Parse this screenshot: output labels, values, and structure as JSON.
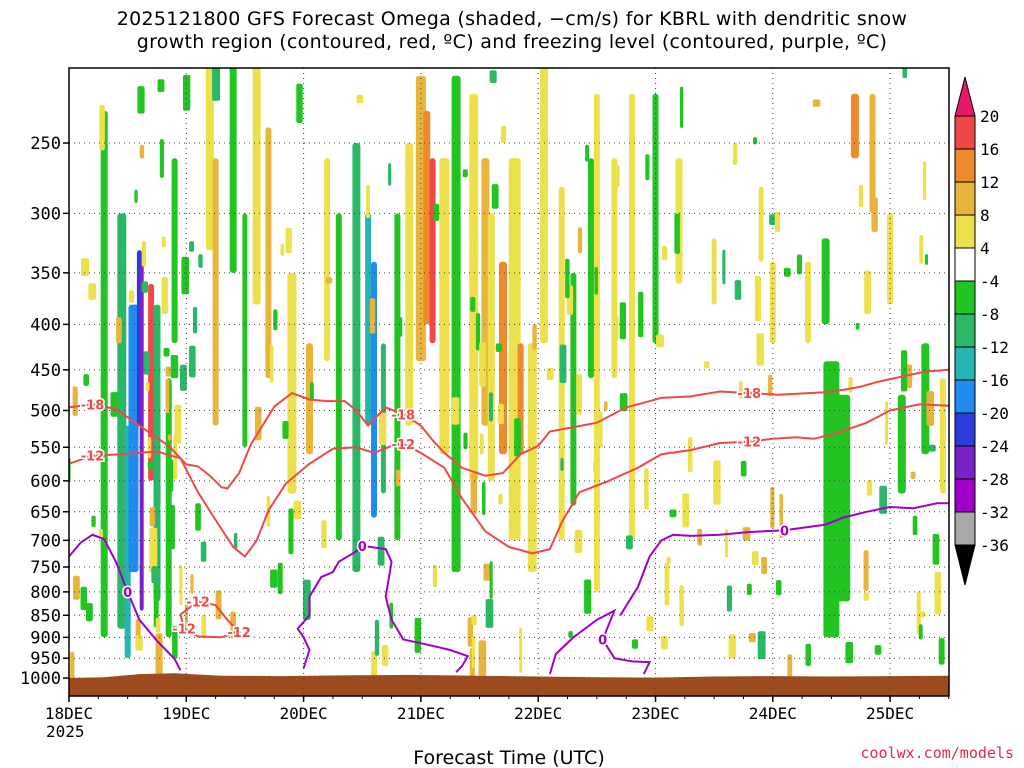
{
  "title_line1": "2025121800 GFS Forecast Omega (shaded, −cm/s) for KBRL with dendritic snow",
  "title_line2": "growth region (contoured, red, ºC) and freezing level (contoured, purple, ºC)",
  "xlabel": "Forecast Time (UTC)",
  "credit": "coolwx.com/models",
  "chart_data": {
    "type": "heatmap",
    "x_ticks": [
      "18DEC",
      "19DEC",
      "20DEC",
      "21DEC",
      "22DEC",
      "23DEC",
      "24DEC",
      "25DEC"
    ],
    "x_year": "2025",
    "x_range_days": [
      0,
      7.5
    ],
    "y_ticks": [
      250,
      300,
      350,
      400,
      450,
      500,
      550,
      600,
      650,
      700,
      750,
      800,
      850,
      900,
      950,
      1000
    ],
    "y_scale": "log-pressure",
    "y_range_hpa": [
      200,
      1050
    ],
    "grid": "dotted",
    "colorbar": {
      "labels": [
        "20",
        "16",
        "12",
        "8",
        "4",
        "-4",
        "-8",
        "-12",
        "-16",
        "-20",
        "-24",
        "-28",
        "-32",
        "-36"
      ],
      "colors": [
        "#e8176a",
        "#f04848",
        "#ec8a2c",
        "#e8b43c",
        "#ece04c",
        "#ffffff",
        "#22c422",
        "#2ab866",
        "#26b4b4",
        "#1e8cf0",
        "#2c3cdc",
        "#7a22c8",
        "#a000c8",
        "#a8a8a8",
        "#000000"
      ]
    },
    "dendritic_contours": [
      {
        "label": "-18",
        "color": "#f04848",
        "points": [
          [
            0,
            496
          ],
          [
            0.2,
            492
          ],
          [
            0.4,
            498
          ],
          [
            0.6,
            520
          ],
          [
            0.85,
            548
          ],
          [
            1.0,
            575
          ],
          [
            1.1,
            578
          ],
          [
            1.2,
            592
          ],
          [
            1.3,
            610
          ],
          [
            1.35,
            612
          ],
          [
            1.4,
            600
          ],
          [
            1.45,
            588
          ],
          [
            1.55,
            546
          ],
          [
            1.75,
            495
          ],
          [
            1.9,
            478
          ],
          [
            2.05,
            486
          ],
          [
            2.2,
            488
          ],
          [
            2.35,
            488
          ],
          [
            2.45,
            500
          ],
          [
            2.55,
            520
          ],
          [
            2.7,
            496
          ],
          [
            2.85,
            505
          ],
          [
            3.0,
            520
          ],
          [
            3.1,
            540
          ],
          [
            3.2,
            558
          ],
          [
            3.35,
            580
          ],
          [
            3.55,
            592
          ],
          [
            3.7,
            588
          ],
          [
            3.85,
            560
          ],
          [
            4.0,
            548
          ],
          [
            4.1,
            528
          ],
          [
            4.3,
            522
          ],
          [
            4.5,
            516
          ],
          [
            4.75,
            496
          ],
          [
            4.9,
            490
          ],
          [
            5.05,
            484
          ],
          [
            5.3,
            482
          ],
          [
            5.55,
            476
          ],
          [
            5.8,
            478
          ],
          [
            6.05,
            480
          ],
          [
            6.3,
            478
          ],
          [
            6.45,
            477
          ],
          [
            6.6,
            474
          ],
          [
            6.75,
            470
          ],
          [
            6.9,
            464
          ],
          [
            7.1,
            458
          ],
          [
            7.3,
            452
          ],
          [
            7.5,
            450
          ]
        ]
      },
      {
        "label": "-12",
        "color": "#f04848",
        "points": [
          [
            0,
            574
          ],
          [
            0.2,
            562
          ],
          [
            0.45,
            560
          ],
          [
            0.75,
            556
          ],
          [
            0.95,
            566
          ],
          [
            1.1,
            618
          ],
          [
            1.25,
            664
          ],
          [
            1.35,
            696
          ],
          [
            1.4,
            712
          ],
          [
            1.5,
            730
          ],
          [
            1.6,
            700
          ],
          [
            1.7,
            648
          ],
          [
            1.85,
            604
          ],
          [
            2.05,
            574
          ],
          [
            2.25,
            552
          ],
          [
            2.45,
            550
          ],
          [
            2.6,
            558
          ],
          [
            2.75,
            548
          ],
          [
            2.85,
            545
          ],
          [
            3.0,
            558
          ],
          [
            3.2,
            580
          ],
          [
            3.35,
            628
          ],
          [
            3.55,
            684
          ],
          [
            3.75,
            712
          ],
          [
            3.95,
            724
          ],
          [
            4.1,
            716
          ],
          [
            4.2,
            668
          ],
          [
            4.35,
            618
          ],
          [
            4.6,
            600
          ],
          [
            4.85,
            580
          ],
          [
            5.05,
            560
          ],
          [
            5.3,
            554
          ],
          [
            5.55,
            544
          ],
          [
            5.8,
            542
          ],
          [
            6.0,
            538
          ],
          [
            6.2,
            536
          ],
          [
            6.35,
            538
          ],
          [
            6.55,
            530
          ],
          [
            6.8,
            516
          ],
          [
            7.0,
            500
          ],
          [
            7.25,
            492
          ],
          [
            7.5,
            494
          ]
        ]
      },
      {
        "label": "-12",
        "color": "#f04848",
        "points": [
          [
            0.95,
            848
          ],
          [
            1.1,
            820
          ],
          [
            1.25,
            828
          ],
          [
            1.35,
            860
          ],
          [
            1.45,
            888
          ],
          [
            1.3,
            900
          ],
          [
            1.1,
            898
          ],
          [
            0.98,
            880
          ],
          [
            0.95,
            848
          ]
        ]
      }
    ],
    "freezing_contours": [
      {
        "label": "0",
        "color": "#a000c8",
        "points": [
          [
            0,
            730
          ],
          [
            0.1,
            704
          ],
          [
            0.2,
            690
          ],
          [
            0.3,
            698
          ],
          [
            0.4,
            740
          ],
          [
            0.5,
            800
          ],
          [
            0.6,
            860
          ],
          [
            0.75,
            908
          ],
          [
            0.9,
            952
          ],
          [
            0.95,
            980
          ]
        ]
      },
      {
        "label": "0",
        "color": "#a000c8",
        "points": [
          [
            2.0,
            975
          ],
          [
            2.05,
            930
          ],
          [
            2.0,
            900
          ],
          [
            1.95,
            880
          ],
          [
            2.05,
            850
          ],
          [
            2.05,
            810
          ],
          [
            2.15,
            770
          ],
          [
            2.25,
            760
          ],
          [
            2.3,
            740
          ],
          [
            2.45,
            720
          ],
          [
            2.5,
            710
          ],
          [
            2.7,
            716
          ],
          [
            2.75,
            740
          ],
          [
            2.7,
            810
          ],
          [
            2.75,
            860
          ],
          [
            2.85,
            905
          ],
          [
            3.1,
            920
          ],
          [
            3.25,
            930
          ],
          [
            3.4,
            945
          ],
          [
            3.35,
            970
          ],
          [
            3.3,
            985
          ]
        ]
      },
      {
        "label": "0",
        "color": "#a000c8",
        "points": [
          [
            4.1,
            990
          ],
          [
            4.15,
            940
          ],
          [
            4.3,
            900
          ],
          [
            4.5,
            860
          ],
          [
            4.65,
            840
          ],
          [
            4.55,
            905
          ],
          [
            4.65,
            950
          ],
          [
            4.8,
            958
          ],
          [
            4.95,
            960
          ],
          [
            4.9,
            990
          ]
        ]
      },
      {
        "label": "0",
        "color": "#a000c8",
        "points": [
          [
            4.7,
            850
          ],
          [
            4.85,
            790
          ],
          [
            4.95,
            730
          ],
          [
            5.05,
            700
          ],
          [
            5.15,
            690
          ],
          [
            5.3,
            692
          ],
          [
            5.55,
            690
          ],
          [
            5.8,
            685
          ],
          [
            6.1,
            682
          ],
          [
            6.45,
            672
          ],
          [
            6.6,
            660
          ],
          [
            6.8,
            650
          ],
          [
            7.0,
            642
          ],
          [
            7.2,
            644
          ],
          [
            7.4,
            636
          ],
          [
            7.5,
            636
          ]
        ]
      }
    ]
  }
}
